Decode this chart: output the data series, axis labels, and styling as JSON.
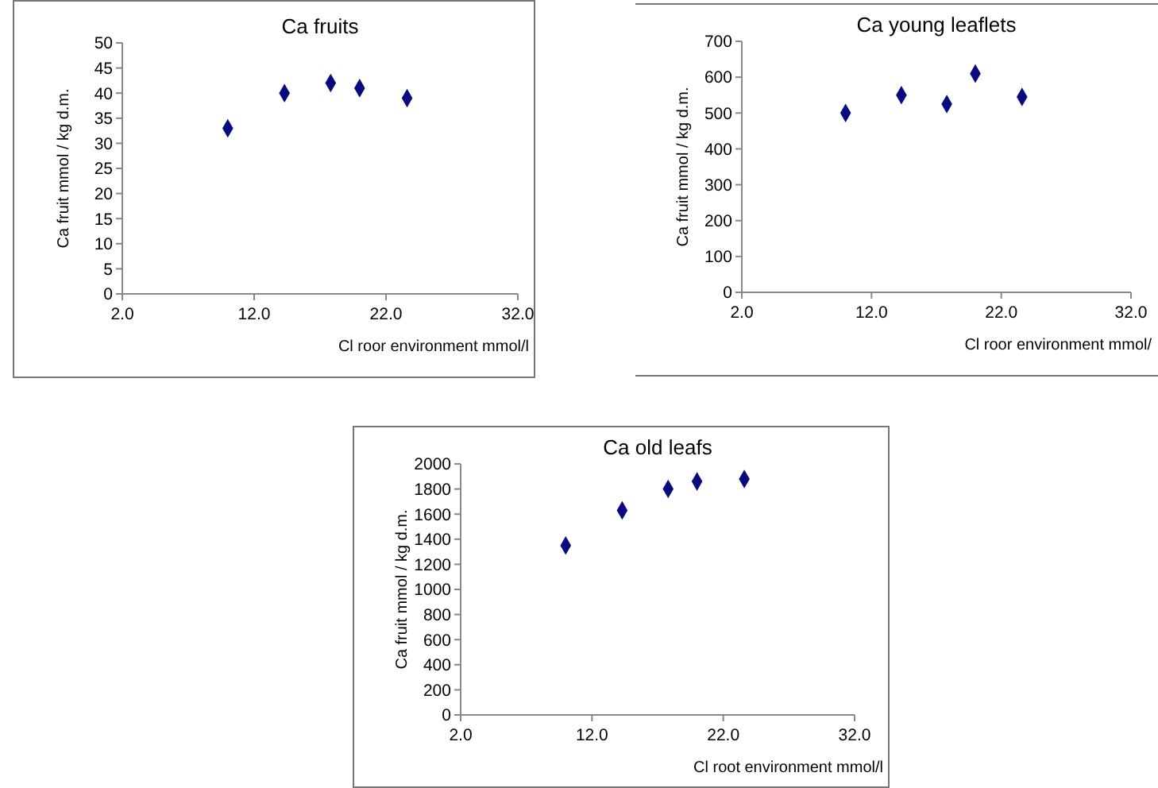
{
  "chart_data": [
    {
      "type": "scatter",
      "title": "Ca fruits",
      "xlabel": "Cl roor environment mmol/l",
      "ylabel": "Ca fruit  mmol / kg d.m.",
      "marker": "diamond",
      "grid": false,
      "xlim": [
        2,
        32
      ],
      "xticks": [
        {
          "value": 2,
          "label": "2.0"
        },
        {
          "value": 12,
          "label": "12.0"
        },
        {
          "value": 22,
          "label": "22.0"
        },
        {
          "value": 32,
          "label": "32.0"
        }
      ],
      "ylim": [
        0,
        50
      ],
      "yticks": [
        0,
        5,
        10,
        15,
        20,
        25,
        30,
        35,
        40,
        45,
        50
      ],
      "series": [
        {
          "color": "#0a0a80",
          "x": [
            10,
            14.3,
            17.8,
            20,
            23.6
          ],
          "values": [
            33,
            40,
            42,
            41,
            39
          ]
        }
      ]
    },
    {
      "type": "scatter",
      "title": "Ca young leaflets",
      "xlabel": "Cl roor environment mmol/",
      "ylabel": "Ca fruit  mmol / kg d.m.",
      "marker": "diamond",
      "grid": false,
      "xlim": [
        2,
        32
      ],
      "xticks": [
        {
          "value": 2,
          "label": "2.0"
        },
        {
          "value": 12,
          "label": "12.0"
        },
        {
          "value": 22,
          "label": "22.0"
        },
        {
          "value": 32,
          "label": "32.0"
        }
      ],
      "ylim": [
        0,
        700
      ],
      "yticks": [
        0,
        100,
        200,
        300,
        400,
        500,
        600,
        700
      ],
      "series": [
        {
          "color": "#0a0a80",
          "x": [
            10,
            14.3,
            17.8,
            20,
            23.6
          ],
          "values": [
            500,
            550,
            525,
            610,
            545
          ]
        }
      ]
    },
    {
      "type": "scatter",
      "title": "Ca old leafs",
      "xlabel": "Cl root environment mmol/l",
      "ylabel": "Ca fruit  mmol / kg d.m.",
      "marker": "diamond",
      "grid": false,
      "xlim": [
        2,
        32
      ],
      "xticks": [
        {
          "value": 2,
          "label": "2.0"
        },
        {
          "value": 12,
          "label": "12.0"
        },
        {
          "value": 22,
          "label": "22.0"
        },
        {
          "value": 32,
          "label": "32.0"
        }
      ],
      "ylim": [
        0,
        2000
      ],
      "yticks": [
        0,
        200,
        400,
        600,
        800,
        1000,
        1200,
        1400,
        1600,
        1800,
        2000
      ],
      "series": [
        {
          "color": "#0a0a80",
          "x": [
            10,
            14.3,
            17.8,
            20,
            23.6
          ],
          "values": [
            1350,
            1630,
            1800,
            1860,
            1880
          ]
        }
      ]
    }
  ]
}
